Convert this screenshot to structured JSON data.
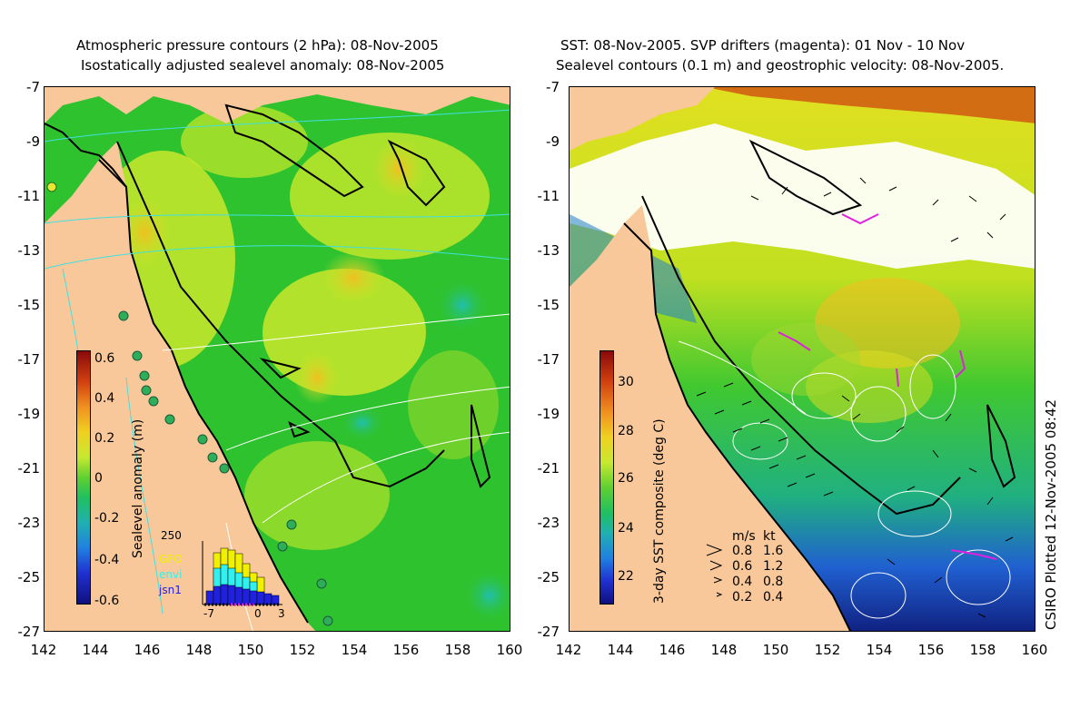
{
  "left_panel": {
    "title_line1": "Atmospheric pressure contours (2 hPa): 08-Nov-2005",
    "title_line2": "Isostatically adjusted sealevel anomaly: 08-Nov-2005",
    "colorbar_label": "Sealevel anomaly (m)",
    "colorbar_ticks": [
      "0.6",
      "0.4",
      "0.2",
      "0",
      "-0.2",
      "-0.4",
      "-0.6"
    ],
    "histogram": {
      "y_max_label": "250",
      "x_ticks": [
        "-7",
        "0",
        "3"
      ],
      "legend": [
        {
          "label": "GFO",
          "color": "#f0f000"
        },
        {
          "label": "envi",
          "color": "#30f0f0"
        },
        {
          "label": "jsn1",
          "color": "#2020e0"
        }
      ]
    }
  },
  "right_panel": {
    "title_line1": "SST: 08-Nov-2005. SVP drifters (magenta): 01 Nov - 10 Nov",
    "title_line2": "Sealevel contours (0.1 m) and geostrophic velocity: 08-Nov-2005.",
    "colorbar_label": "3-day SST composite (deg C)",
    "colorbar_ticks": [
      "30",
      "28",
      "26",
      "24",
      "22"
    ],
    "velocity_legend": {
      "header_ms": "m/s",
      "header_kt": "kt",
      "rows": [
        {
          "ms": "0.8",
          "kt": "1.6"
        },
        {
          "ms": "0.6",
          "kt": "1.2"
        },
        {
          "ms": "0.4",
          "kt": "0.8"
        },
        {
          "ms": "0.2",
          "kt": "0.4"
        }
      ]
    }
  },
  "axes": {
    "y_ticks": [
      "-7",
      "-9",
      "-11",
      "-13",
      "-15",
      "-17",
      "-19",
      "-21",
      "-23",
      "-25",
      "-27"
    ],
    "x_ticks": [
      "142",
      "144",
      "146",
      "148",
      "150",
      "152",
      "154",
      "156",
      "158",
      "160"
    ]
  },
  "stamp": "CSIRO Plotted 12-Nov-2005 08:42",
  "colors": {
    "land": "#f9c89a",
    "ocean_green": "#2fc22f",
    "ocean_yellow": "#c9e82a",
    "no_data": "#ffffff",
    "drifter": "#e020e0",
    "contour_cyan": "#40e0e0"
  }
}
